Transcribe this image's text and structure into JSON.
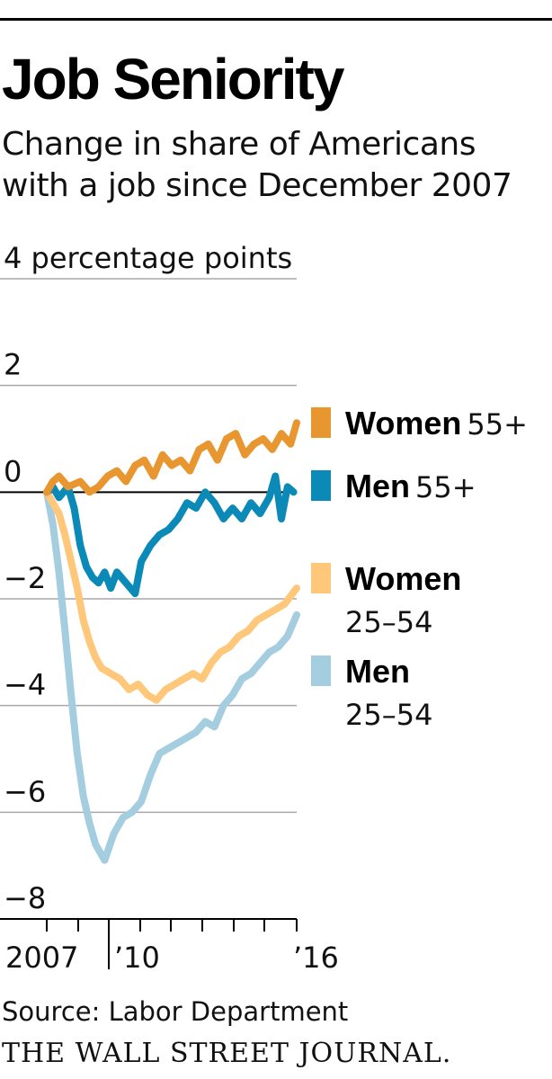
{
  "header": {
    "title": "Job Seniority",
    "subtitle": "Change in share of Americans with a job since December 2007"
  },
  "footer": {
    "source": "Source: Labor Department",
    "brand": "THE WALL STREET JOURNAL."
  },
  "chart_data": {
    "type": "line",
    "title": "Job Seniority",
    "subtitle": "Change in share of Americans with a job since December 2007",
    "ylabel": "percentage points",
    "ylim": [
      -8,
      4
    ],
    "xlim": [
      2007,
      2016.1
    ],
    "y_ticks": [
      4,
      2,
      0,
      -2,
      -4,
      -6,
      -8
    ],
    "y_tick_labels": [
      "4 percentage points",
      "2",
      "0",
      "−2",
      "−4",
      "−6",
      "−8"
    ],
    "x_tick_labels": [
      {
        "x": 2007,
        "label": "2007"
      },
      {
        "x": 2010,
        "label": "’10"
      },
      {
        "x": 2016,
        "label": "’16"
      }
    ],
    "grid": true,
    "legend_position": "right",
    "series": [
      {
        "name": "Women 55+",
        "legend": [
          "Women",
          "55+"
        ],
        "color": "#e8962f",
        "x": [
          2007.9,
          2008.1,
          2008.3,
          2008.6,
          2009.0,
          2009.3,
          2009.6,
          2009.9,
          2010.2,
          2010.5,
          2010.8,
          2011.1,
          2011.4,
          2011.7,
          2012.0,
          2012.3,
          2012.6,
          2012.9,
          2013.2,
          2013.5,
          2013.8,
          2014.1,
          2014.4,
          2014.7,
          2015.0,
          2015.3,
          2015.6,
          2015.9,
          2016.1
        ],
        "y": [
          0.0,
          0.2,
          0.3,
          0.1,
          0.2,
          0.0,
          0.1,
          0.3,
          0.4,
          0.2,
          0.5,
          0.6,
          0.3,
          0.7,
          0.5,
          0.6,
          0.4,
          0.8,
          0.9,
          0.6,
          1.0,
          1.1,
          0.7,
          0.9,
          1.0,
          0.8,
          1.1,
          0.9,
          1.3
        ]
      },
      {
        "name": "Men 55+",
        "legend": [
          "Men",
          "55+"
        ],
        "color": "#0b8ab8",
        "x": [
          2007.9,
          2008.1,
          2008.3,
          2008.6,
          2008.8,
          2009.0,
          2009.2,
          2009.4,
          2009.6,
          2009.8,
          2010.0,
          2010.2,
          2010.5,
          2010.8,
          2011.0,
          2011.3,
          2011.6,
          2011.9,
          2012.2,
          2012.5,
          2012.8,
          2013.1,
          2013.4,
          2013.7,
          2014.0,
          2014.3,
          2014.6,
          2014.9,
          2015.2,
          2015.4,
          2015.6,
          2015.8,
          2016.0
        ],
        "y": [
          0.0,
          0.1,
          -0.1,
          0.1,
          -0.3,
          -1.0,
          -1.4,
          -1.6,
          -1.7,
          -1.5,
          -1.8,
          -1.5,
          -1.7,
          -1.9,
          -1.3,
          -1.0,
          -0.8,
          -0.7,
          -0.5,
          -0.2,
          -0.3,
          0.0,
          -0.2,
          -0.5,
          -0.3,
          -0.5,
          -0.2,
          -0.4,
          -0.1,
          0.3,
          -0.5,
          0.1,
          0.0
        ]
      },
      {
        "name": "Women 25–54",
        "legend": [
          "Women",
          "25–54"
        ],
        "color": "#fec779",
        "x": [
          2007.9,
          2008.1,
          2008.3,
          2008.5,
          2008.7,
          2008.9,
          2009.1,
          2009.3,
          2009.5,
          2009.7,
          2010.0,
          2010.3,
          2010.6,
          2010.9,
          2011.2,
          2011.5,
          2011.8,
          2012.1,
          2012.4,
          2012.7,
          2013.0,
          2013.3,
          2013.6,
          2013.9,
          2014.2,
          2014.5,
          2014.8,
          2015.1,
          2015.4,
          2015.7,
          2016.1
        ],
        "y": [
          0.0,
          -0.2,
          -0.4,
          -0.8,
          -1.3,
          -1.8,
          -2.4,
          -2.8,
          -3.1,
          -3.3,
          -3.4,
          -3.5,
          -3.7,
          -3.6,
          -3.8,
          -3.9,
          -3.7,
          -3.6,
          -3.5,
          -3.4,
          -3.5,
          -3.2,
          -3.0,
          -2.9,
          -2.7,
          -2.6,
          -2.4,
          -2.3,
          -2.2,
          -2.1,
          -1.8
        ]
      },
      {
        "name": "Men 25–54",
        "legend": [
          "Men",
          "25–54"
        ],
        "color": "#a5cde0",
        "x": [
          2007.9,
          2008.1,
          2008.3,
          2008.5,
          2008.7,
          2008.9,
          2009.1,
          2009.3,
          2009.5,
          2009.8,
          2010.1,
          2010.4,
          2010.7,
          2011.0,
          2011.3,
          2011.6,
          2011.9,
          2012.2,
          2012.5,
          2012.8,
          2013.1,
          2013.4,
          2013.7,
          2014.0,
          2014.3,
          2014.6,
          2014.9,
          2015.2,
          2015.5,
          2015.8,
          2016.1
        ],
        "y": [
          0.0,
          -0.6,
          -1.5,
          -2.6,
          -3.8,
          -4.9,
          -5.7,
          -6.2,
          -6.6,
          -6.9,
          -6.4,
          -6.1,
          -6.0,
          -5.8,
          -5.3,
          -4.9,
          -4.8,
          -4.7,
          -4.6,
          -4.5,
          -4.3,
          -4.4,
          -4.0,
          -3.8,
          -3.5,
          -3.4,
          -3.2,
          -3.0,
          -2.9,
          -2.7,
          -2.3
        ]
      }
    ]
  }
}
